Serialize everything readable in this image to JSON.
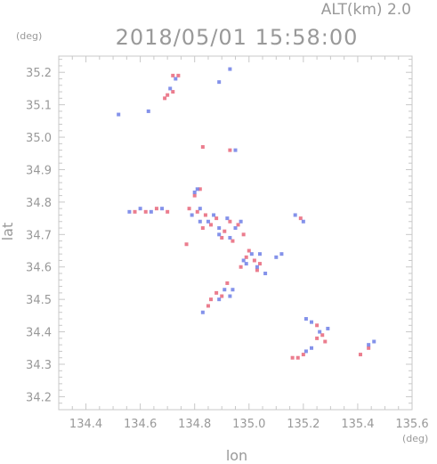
{
  "header": {
    "altitude_label": "ALT(km)  2.0",
    "timestamp": "2018/05/01  15:58:00"
  },
  "colors": {
    "frame": "#c8c8c8",
    "text": "#999999",
    "positive_echo": "#e8667a",
    "negative_echo": "#6f7fe6",
    "positive_echo_light": "#f4a6b4",
    "negative_echo_light": "#a9b4f2"
  },
  "chart_data": {
    "type": "scatter",
    "xlabel": "lon",
    "ylabel": "lat",
    "x_unit": "(deg)",
    "y_unit": "(deg)",
    "xlim": [
      134.3,
      135.6
    ],
    "ylim": [
      34.16,
      35.25
    ],
    "xticks": [
      134.4,
      134.6,
      134.8,
      135.0,
      135.2,
      135.4,
      135.6
    ],
    "xtick_labels": [
      "134.4",
      "134.6",
      "134.8",
      "135.0",
      "135.2",
      "135.4",
      "135.6"
    ],
    "yticks": [
      34.2,
      34.3,
      34.4,
      34.5,
      34.6,
      34.7,
      34.8,
      34.9,
      35.0,
      35.1,
      35.2
    ],
    "ytick_labels": [
      "34.2",
      "34.3",
      "34.4",
      "34.5",
      "34.6",
      "34.7",
      "34.8",
      "34.9",
      "35.0",
      "35.1",
      "35.2"
    ],
    "grid": false,
    "series": [
      {
        "color": "#e8667a",
        "points": [
          [
            134.72,
            35.19
          ],
          [
            134.74,
            35.19
          ],
          [
            134.7,
            35.13
          ],
          [
            134.72,
            35.14
          ],
          [
            134.69,
            35.12
          ],
          [
            134.82,
            34.84
          ],
          [
            134.8,
            34.82
          ],
          [
            134.78,
            34.78
          ],
          [
            134.81,
            34.77
          ],
          [
            134.84,
            34.76
          ],
          [
            134.86,
            34.73
          ],
          [
            134.83,
            34.72
          ],
          [
            134.88,
            34.75
          ],
          [
            134.91,
            34.71
          ],
          [
            134.93,
            34.74
          ],
          [
            134.96,
            34.73
          ],
          [
            134.98,
            34.7
          ],
          [
            134.9,
            34.69
          ],
          [
            134.94,
            34.68
          ],
          [
            134.66,
            34.78
          ],
          [
            134.62,
            34.77
          ],
          [
            134.58,
            34.77
          ],
          [
            134.7,
            34.77
          ],
          [
            134.77,
            34.67
          ],
          [
            135.0,
            34.65
          ],
          [
            135.02,
            34.62
          ],
          [
            134.99,
            34.63
          ],
          [
            135.04,
            34.61
          ],
          [
            134.97,
            34.6
          ],
          [
            135.03,
            34.59
          ],
          [
            134.92,
            34.55
          ],
          [
            134.88,
            34.52
          ],
          [
            134.9,
            34.51
          ],
          [
            134.86,
            34.5
          ],
          [
            134.85,
            34.48
          ],
          [
            135.19,
            34.75
          ],
          [
            135.18,
            34.32
          ],
          [
            135.16,
            34.32
          ],
          [
            135.2,
            34.33
          ],
          [
            135.25,
            34.38
          ],
          [
            135.27,
            34.39
          ],
          [
            135.28,
            34.37
          ],
          [
            135.25,
            34.42
          ],
          [
            135.41,
            34.33
          ],
          [
            135.44,
            34.35
          ],
          [
            134.93,
            34.96
          ],
          [
            134.83,
            34.97
          ]
        ]
      },
      {
        "color": "#6f7fe6",
        "points": [
          [
            134.73,
            35.18
          ],
          [
            134.71,
            35.15
          ],
          [
            134.93,
            35.21
          ],
          [
            134.89,
            35.17
          ],
          [
            134.52,
            35.07
          ],
          [
            134.63,
            35.08
          ],
          [
            134.8,
            34.83
          ],
          [
            134.82,
            34.78
          ],
          [
            134.79,
            34.76
          ],
          [
            134.85,
            34.74
          ],
          [
            134.87,
            34.76
          ],
          [
            134.82,
            34.74
          ],
          [
            134.89,
            34.72
          ],
          [
            134.92,
            34.75
          ],
          [
            134.95,
            34.72
          ],
          [
            134.97,
            34.74
          ],
          [
            134.89,
            34.7
          ],
          [
            134.93,
            34.69
          ],
          [
            134.6,
            34.78
          ],
          [
            134.56,
            34.77
          ],
          [
            134.68,
            34.78
          ],
          [
            134.64,
            34.77
          ],
          [
            135.01,
            34.64
          ],
          [
            135.04,
            34.64
          ],
          [
            134.99,
            34.61
          ],
          [
            135.03,
            34.6
          ],
          [
            134.98,
            34.62
          ],
          [
            135.12,
            34.64
          ],
          [
            135.1,
            34.63
          ],
          [
            135.06,
            34.58
          ],
          [
            134.94,
            34.53
          ],
          [
            134.91,
            34.53
          ],
          [
            134.89,
            34.5
          ],
          [
            134.93,
            34.51
          ],
          [
            134.83,
            34.46
          ],
          [
            135.17,
            34.76
          ],
          [
            135.2,
            34.74
          ],
          [
            135.21,
            34.44
          ],
          [
            135.23,
            34.43
          ],
          [
            135.26,
            34.4
          ],
          [
            135.29,
            34.41
          ],
          [
            135.23,
            34.35
          ],
          [
            135.21,
            34.34
          ],
          [
            135.46,
            34.37
          ],
          [
            135.44,
            34.36
          ],
          [
            134.95,
            34.96
          ],
          [
            134.81,
            34.84
          ]
        ]
      }
    ]
  }
}
